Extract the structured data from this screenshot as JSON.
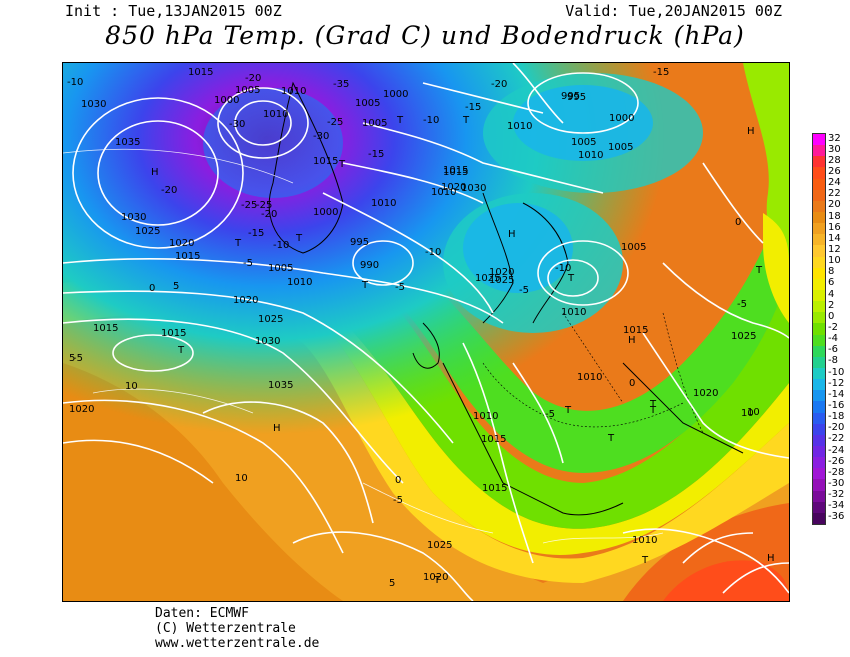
{
  "header": {
    "init": "Init : Tue,13JAN2015 00Z",
    "valid": "Valid: Tue,20JAN2015 00Z",
    "title": "850 hPa Temp. (Grad C) und Bodendruck (hPa)"
  },
  "legend": {
    "values": [
      "32",
      "30",
      "28",
      "26",
      "24",
      "22",
      "20",
      "18",
      "16",
      "14",
      "12",
      "10",
      "8",
      "6",
      "4",
      "2",
      "0",
      "-2",
      "-4",
      "-6",
      "-8",
      "-10",
      "-12",
      "-14",
      "-16",
      "-18",
      "-20",
      "-22",
      "-24",
      "-26",
      "-28",
      "-30",
      "-32",
      "-34",
      "-36"
    ],
    "colors": [
      "#ff00ff",
      "#ff1a99",
      "#ff3333",
      "#ff4d1a",
      "#f85c10",
      "#f06818",
      "#ea7a1a",
      "#e88c14",
      "#f0a020",
      "#f7b428",
      "#ffc830",
      "#ffd820",
      "#ffe400",
      "#f2ee00",
      "#d9f000",
      "#bbf000",
      "#99ea00",
      "#6fe000",
      "#4ede20",
      "#2ed85a",
      "#22d08e",
      "#1ecbc4",
      "#1ab6e8",
      "#1896f0",
      "#1a78f2",
      "#2a5cf0",
      "#3c44ec",
      "#5632e8",
      "#7026e4",
      "#8a1ee0",
      "#a016d6",
      "#9410b8",
      "#7a0c9a",
      "#5e087a",
      "#48055e"
    ]
  },
  "map": {
    "highs": [
      "H",
      "H",
      "H",
      "H",
      "H",
      "H"
    ],
    "lows": [
      "T",
      "T",
      "T",
      "T",
      "T",
      "T",
      "T",
      "T",
      "T",
      "T",
      "T",
      "T",
      "T",
      "T",
      "T"
    ],
    "isobar_labels": [
      "1015",
      "1030",
      "1035",
      "1030",
      "1025",
      "1020",
      "1015",
      "1000",
      "1005",
      "1010",
      "1010",
      "1005",
      "1000",
      "995",
      "990",
      "1005",
      "1010",
      "1020",
      "1025",
      "1030",
      "1035",
      "1015",
      "1015",
      "1020",
      "1015",
      "1000",
      "1005",
      "1010",
      "1015",
      "1025",
      "1030",
      "1020",
      "1010",
      "1005",
      "1010",
      "1015",
      "1020",
      "1025",
      "995",
      "1010",
      "1005",
      "995",
      "1000",
      "1005",
      "1010",
      "1025",
      "1020",
      "1015",
      "1010",
      "1015",
      "1025",
      "1010",
      "1020",
      "1015",
      "1010"
    ],
    "temperature_labels": [
      "-10",
      "-20",
      "-30",
      "-35",
      "-25",
      "-30",
      "-20",
      "-25",
      "-15",
      "-10",
      "-25",
      "-20",
      "-15",
      "-10",
      "-5",
      "-15",
      "-20",
      "-15",
      "-10",
      "-5",
      "0",
      "-5",
      "0",
      "5",
      "10",
      "10",
      "-5",
      "0",
      "-5",
      "5",
      "10",
      "-5",
      "0",
      "10",
      "5",
      "-5",
      "-10"
    ]
  },
  "credits": {
    "line1": "Daten: ECMWF",
    "line2": "(C) Wetterzentrale",
    "line3": "www.wetterzentrale.de"
  }
}
